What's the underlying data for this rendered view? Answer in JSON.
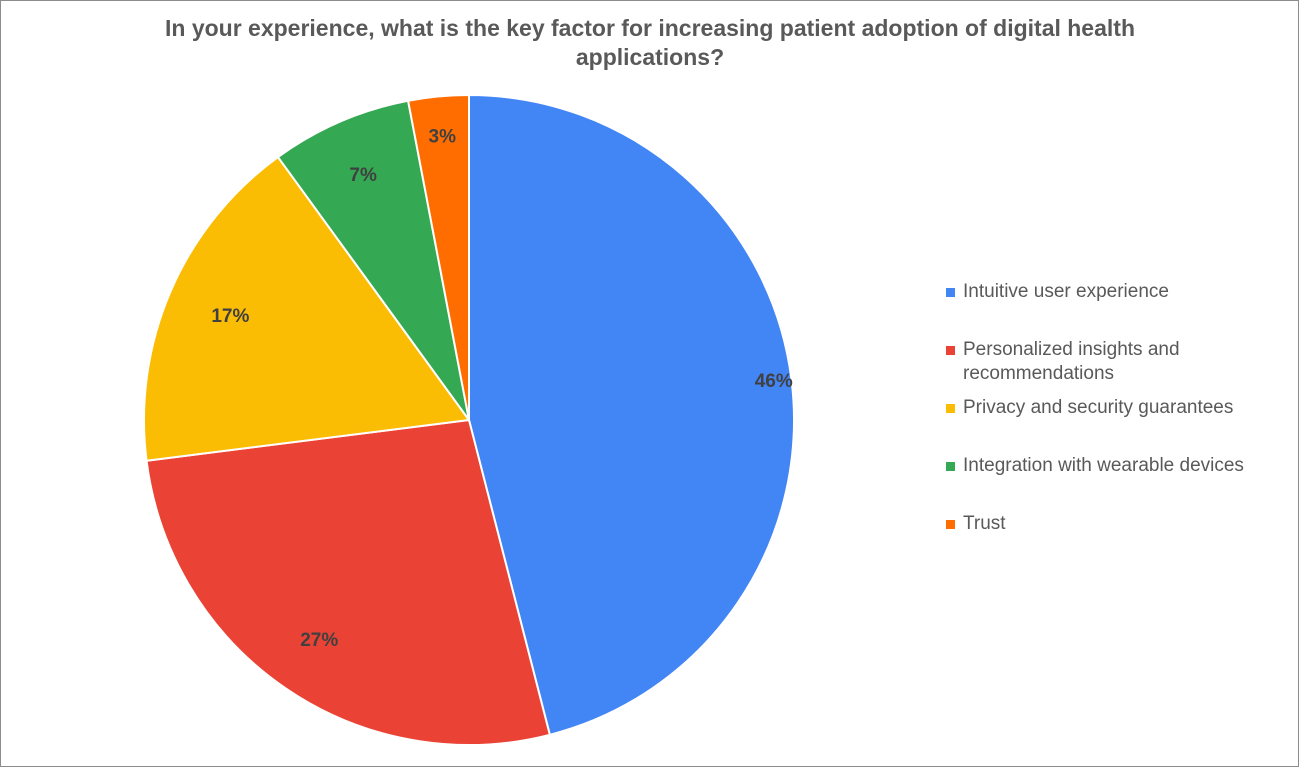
{
  "chart_data": {
    "type": "pie",
    "title": "In your experience, what is the key factor for increasing patient adoption of digital health applications?",
    "categories": [
      "Intuitive user experience",
      "Personalized insights and recommendations",
      "Privacy and security guarantees",
      "Integration with wearable devices",
      "Trust"
    ],
    "values": [
      46,
      27,
      17,
      7,
      3
    ],
    "labels": [
      "46%",
      "27%",
      "17%",
      "7%",
      "3%"
    ],
    "colors": [
      "#4285F4",
      "#EA4335",
      "#FBBC04",
      "#34A853",
      "#FF6D01"
    ],
    "legend_position": "right",
    "start_angle": "12 o'clock",
    "direction": "clockwise"
  }
}
